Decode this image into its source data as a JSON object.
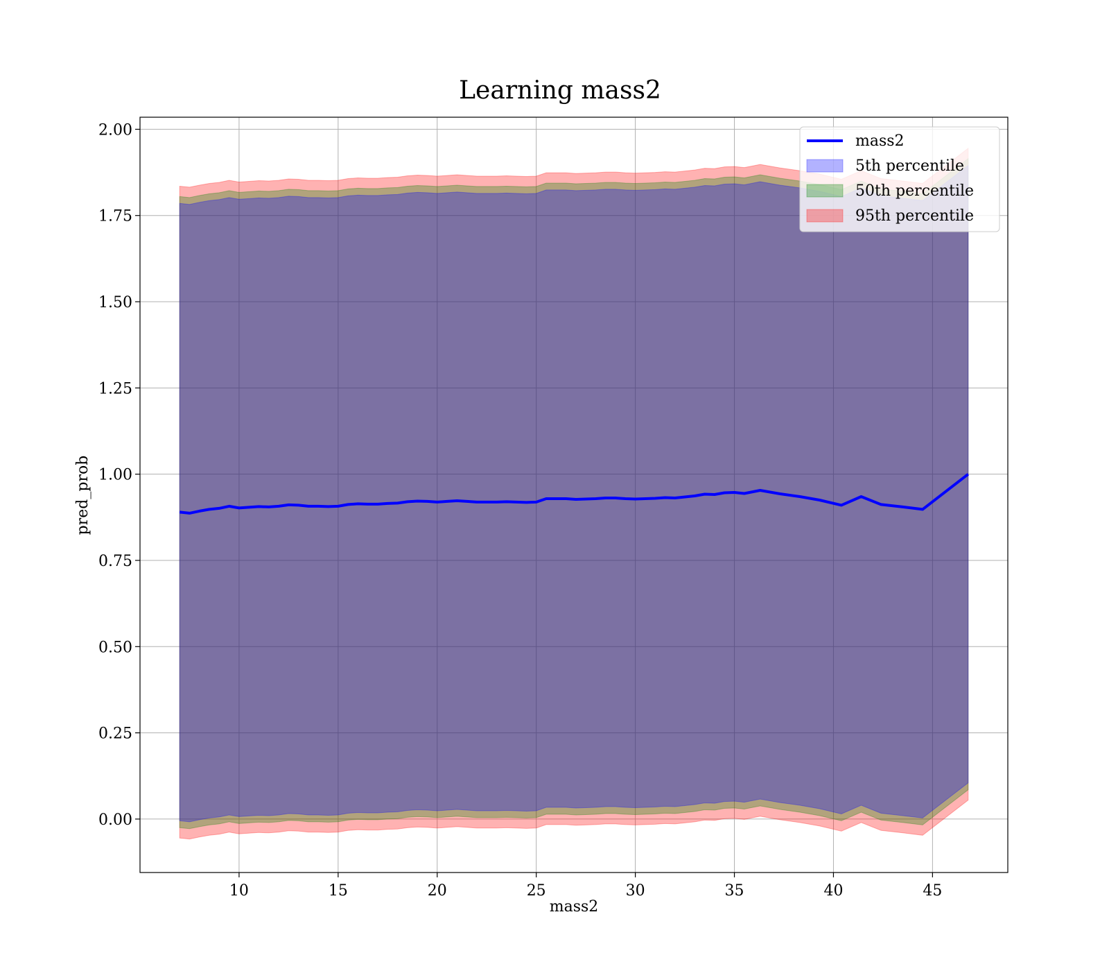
{
  "chart_data": {
    "type": "line",
    "title": "Learning mass2",
    "xlabel": "mass2",
    "ylabel": "pred_prob",
    "xlim": [
      5,
      48.8
    ],
    "ylim": [
      -0.155,
      2.035
    ],
    "xticks": [
      10,
      15,
      20,
      25,
      30,
      35,
      40,
      45
    ],
    "yticks": [
      0.0,
      0.25,
      0.5,
      0.75,
      1.0,
      1.25,
      1.5,
      1.75,
      2.0
    ],
    "ytick_labels": [
      "0.00",
      "0.25",
      "0.50",
      "0.75",
      "1.00",
      "1.25",
      "1.50",
      "1.75",
      "2.00"
    ],
    "grid": true,
    "legend_position": "upper right",
    "x": [
      7.0,
      7.5,
      8.0,
      8.5,
      9.0,
      9.5,
      10.0,
      10.5,
      11.0,
      11.5,
      12.0,
      12.5,
      13.0,
      13.5,
      14.0,
      14.5,
      15.0,
      15.5,
      16.0,
      16.5,
      17.0,
      17.5,
      18.0,
      18.5,
      19.0,
      19.5,
      20.0,
      20.5,
      21.0,
      21.5,
      22.0,
      22.5,
      23.0,
      23.5,
      24.0,
      24.5,
      25.0,
      25.5,
      26.0,
      26.5,
      27.0,
      27.5,
      28.0,
      28.5,
      29.0,
      29.5,
      30.0,
      30.5,
      31.0,
      31.5,
      32.0,
      32.5,
      33.0,
      33.5,
      34.0,
      34.5,
      35.0,
      35.5,
      36.3,
      37.3,
      38.3,
      39.3,
      40.4,
      41.4,
      42.4,
      43.5,
      44.5,
      46.8
    ],
    "series": [
      {
        "name": "mass2",
        "color": "#0000ff",
        "values": [
          0.89,
          0.887,
          0.893,
          0.898,
          0.901,
          0.907,
          0.902,
          0.904,
          0.906,
          0.905,
          0.907,
          0.911,
          0.91,
          0.907,
          0.907,
          0.906,
          0.907,
          0.912,
          0.914,
          0.913,
          0.913,
          0.915,
          0.916,
          0.92,
          0.922,
          0.921,
          0.919,
          0.921,
          0.923,
          0.921,
          0.919,
          0.919,
          0.919,
          0.92,
          0.919,
          0.918,
          0.919,
          0.929,
          0.929,
          0.929,
          0.927,
          0.928,
          0.929,
          0.931,
          0.931,
          0.929,
          0.928,
          0.929,
          0.93,
          0.932,
          0.931,
          0.934,
          0.937,
          0.942,
          0.941,
          0.946,
          0.947,
          0.944,
          0.953,
          0.943,
          0.935,
          0.925,
          0.91,
          0.935,
          0.912,
          0.905,
          0.898,
          1.0
        ]
      }
    ],
    "bands": [
      {
        "name": "5th percentile",
        "color": "#0000ff",
        "half_width": 0.895
      },
      {
        "name": "50th percentile",
        "color": "#008000",
        "half_width": 0.915
      },
      {
        "name": "95th percentile",
        "color": "#ff0000",
        "half_width": 0.945
      }
    ]
  }
}
